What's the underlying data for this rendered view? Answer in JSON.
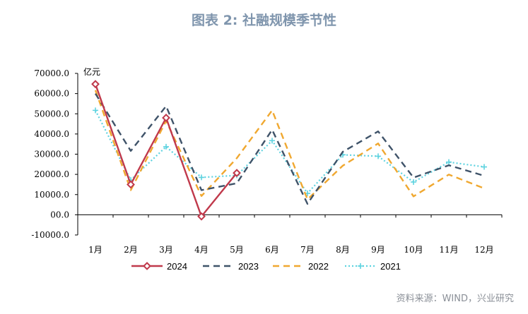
{
  "title": "图表 2:  社融规模季节性",
  "source": "资料来源：WIND，兴业研究",
  "chart_data": {
    "type": "line",
    "unit_label": "亿元",
    "categories": [
      "1月",
      "2月",
      "3月",
      "4月",
      "5月",
      "6月",
      "7月",
      "8月",
      "9月",
      "10月",
      "11月",
      "12月"
    ],
    "ylim": [
      -10000,
      70000
    ],
    "yticks": [
      "70000.0",
      "60000.0",
      "50000.0",
      "40000.0",
      "30000.0",
      "20000.0",
      "10000.0",
      "00.0",
      "-10000.0"
    ],
    "ytick_values": [
      70000,
      60000,
      50000,
      40000,
      30000,
      20000,
      10000,
      0,
      -10000
    ],
    "legend_position": "bottom",
    "grid": false,
    "series": [
      {
        "name": "2024",
        "color": "#c0394b",
        "style": "solid-diamond",
        "values": [
          64700,
          15000,
          48000,
          -800,
          20700,
          null,
          null,
          null,
          null,
          null,
          null,
          null
        ]
      },
      {
        "name": "2023",
        "color": "#3f5369",
        "style": "dash",
        "values": [
          60000,
          31600,
          53800,
          12200,
          15600,
          42100,
          5400,
          31200,
          41300,
          18400,
          24500,
          19300
        ]
      },
      {
        "name": "2022",
        "color": "#f0a830",
        "style": "dash",
        "values": [
          61700,
          12200,
          46500,
          9300,
          28000,
          51700,
          7600,
          24300,
          35300,
          9100,
          19900,
          13100
        ]
      },
      {
        "name": "2021",
        "color": "#5fd3e0",
        "style": "dot-cross",
        "values": [
          51700,
          17200,
          33700,
          18500,
          19500,
          36700,
          10600,
          29700,
          29000,
          16200,
          26100,
          23700
        ]
      }
    ]
  }
}
